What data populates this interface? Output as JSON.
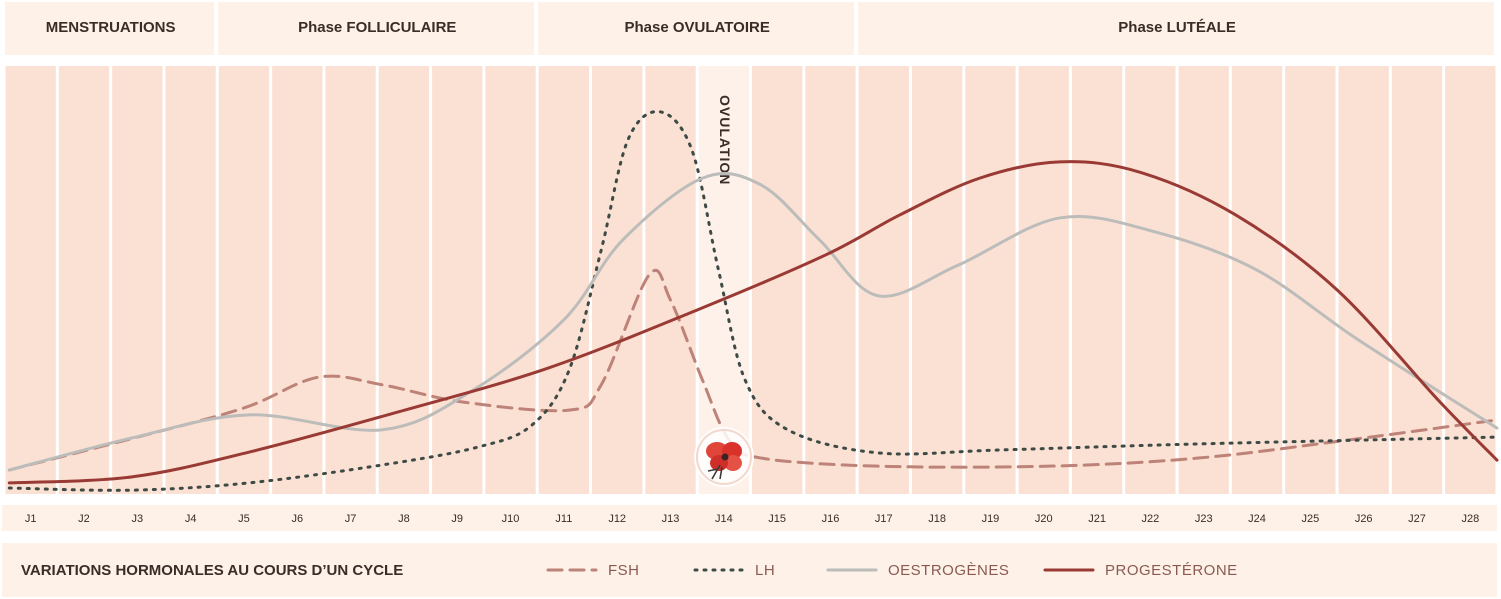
{
  "chart_data": {
    "type": "line",
    "title": "VARIATIONS HORMONALES AU COURS D’UN CYCLE",
    "phases": [
      {
        "label": "MENSTRUATIONS",
        "days": [
          1,
          4
        ]
      },
      {
        "label": "Phase FOLLICULAIRE",
        "days": [
          5,
          10
        ]
      },
      {
        "label": "Phase OVULATOIRE",
        "days": [
          11,
          16
        ]
      },
      {
        "label": "Phase LUTÉALE",
        "days": [
          17,
          28
        ]
      }
    ],
    "categories": [
      "J1",
      "J2",
      "J3",
      "J4",
      "J5",
      "J6",
      "J7",
      "J8",
      "J9",
      "J10",
      "J11",
      "J12",
      "J13",
      "J14",
      "J15",
      "J16",
      "J17",
      "J18",
      "J19",
      "J20",
      "J21",
      "J22",
      "J23",
      "J24",
      "J25",
      "J26",
      "J27",
      "J28"
    ],
    "annotation": {
      "label": "OVULATION",
      "day": 14
    },
    "xlim": [
      0.5,
      28.5
    ],
    "ylim": [
      0,
      100
    ],
    "series": [
      {
        "name": "FSH",
        "color": "#bd8378",
        "dash": "dashed",
        "x": [
          0.6,
          3.0,
          5.0,
          6.4,
          7.6,
          9.1,
          11.1,
          11.7,
          12.6,
          13.0,
          13.6,
          14.1,
          14.7,
          16.9,
          20.1,
          22.9,
          25.7,
          28.5
        ],
        "values": [
          5.6,
          13.3,
          20.1,
          27.3,
          25.5,
          21.5,
          19.6,
          25.5,
          51.2,
          45.3,
          26.6,
          12.6,
          8.4,
          6.5,
          6.5,
          8.4,
          12.6,
          17.3
        ]
      },
      {
        "name": "LH",
        "color": "#3d4a45",
        "dash": "dotted",
        "x": [
          0.6,
          2.9,
          5.1,
          7.6,
          9.4,
          10.4,
          11.1,
          11.7,
          12.2,
          12.8,
          13.4,
          13.9,
          14.4,
          15.2,
          16.9,
          19.2,
          22.9,
          28.5
        ],
        "values": [
          1.4,
          0.9,
          2.6,
          6.8,
          11.0,
          16.1,
          29.0,
          57.0,
          82.7,
          89.3,
          80.4,
          52.3,
          26.6,
          15.0,
          9.6,
          10.3,
          11.7,
          13.3
        ]
      },
      {
        "name": "OESTROGÈNES",
        "color": "#bcbcbb",
        "dash": "solid",
        "x": [
          0.6,
          2.9,
          5.1,
          7.6,
          9.3,
          11.0,
          12.1,
          13.6,
          14.7,
          15.8,
          16.9,
          18.4,
          20.3,
          22.1,
          24.0,
          25.9,
          28.5
        ],
        "values": [
          5.6,
          13.1,
          18.5,
          15.0,
          24.3,
          40.7,
          59.3,
          73.8,
          72.2,
          59.3,
          46.3,
          53.5,
          64.5,
          61.2,
          52.3,
          36.0,
          15.4
        ]
      },
      {
        "name": "PROGESTÉRONE",
        "color": "#9a3a35",
        "dash": "solid",
        "x": [
          0.6,
          2.9,
          5.1,
          7.9,
          10.7,
          13.5,
          15.9,
          17.3,
          18.8,
          20.3,
          21.8,
          23.6,
          25.5,
          27.4,
          28.5
        ],
        "values": [
          2.6,
          4.0,
          9.8,
          19.2,
          29.4,
          43.0,
          55.8,
          65.2,
          73.8,
          77.6,
          75.2,
          65.2,
          47.7,
          21.9,
          7.9
        ]
      }
    ]
  }
}
